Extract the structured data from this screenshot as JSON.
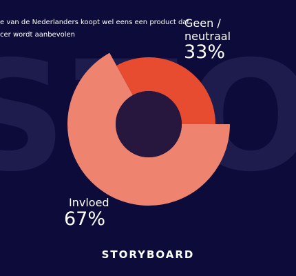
{
  "watermark": "STOR",
  "logo": "STORYBOARD",
  "chart_data": {
    "type": "donut",
    "title_lines": [
      "e van de Nederlanders koopt wel eens een product dat",
      "cer wordt aanbevolen"
    ],
    "categories": [
      "Geen / neutraal",
      "Invloed"
    ],
    "values": [
      33,
      67
    ],
    "value_labels": [
      "33%",
      "67%"
    ],
    "colors": [
      "#e84c30",
      "#ee8370"
    ],
    "hole_color": "#27173f"
  }
}
